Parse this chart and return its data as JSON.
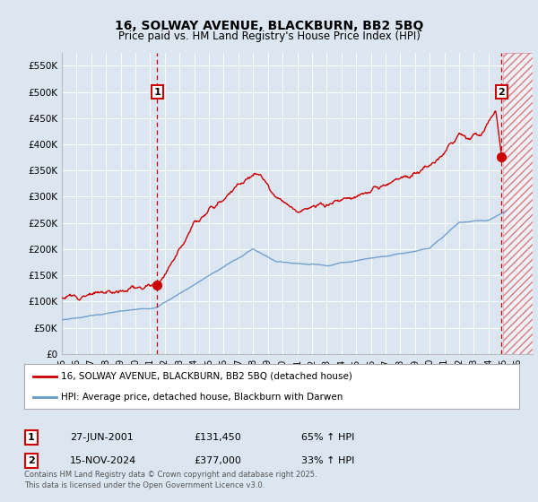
{
  "title": "16, SOLWAY AVENUE, BLACKBURN, BB2 5BQ",
  "subtitle": "Price paid vs. HM Land Registry's House Price Index (HPI)",
  "xlim": [
    1995,
    2027
  ],
  "ylim": [
    0,
    575000
  ],
  "yticks": [
    0,
    50000,
    100000,
    150000,
    200000,
    250000,
    300000,
    350000,
    400000,
    450000,
    500000,
    550000
  ],
  "ytick_labels": [
    "£0",
    "£50K",
    "£100K",
    "£150K",
    "£200K",
    "£250K",
    "£300K",
    "£350K",
    "£400K",
    "£450K",
    "£500K",
    "£550K"
  ],
  "background_color": "#dce6f1",
  "grid_color": "#ffffff",
  "red_line_color": "#cc0000",
  "blue_line_color": "#6699cc",
  "sale1_date": 2001.49,
  "sale1_price": 131450,
  "sale2_date": 2024.88,
  "sale2_price": 377000,
  "legend_line1": "16, SOLWAY AVENUE, BLACKBURN, BB2 5BQ (detached house)",
  "legend_line2": "HPI: Average price, detached house, Blackburn with Darwen",
  "table_row1_num": "1",
  "table_row1_date": "27-JUN-2001",
  "table_row1_price": "£131,450",
  "table_row1_hpi": "65% ↑ HPI",
  "table_row2_num": "2",
  "table_row2_date": "15-NOV-2024",
  "table_row2_price": "£377,000",
  "table_row2_hpi": "33% ↑ HPI",
  "footer": "Contains HM Land Registry data © Crown copyright and database right 2025.\nThis data is licensed under the Open Government Licence v3.0.",
  "future_shade_start": 2025.0,
  "future_shade_end": 2027.0
}
